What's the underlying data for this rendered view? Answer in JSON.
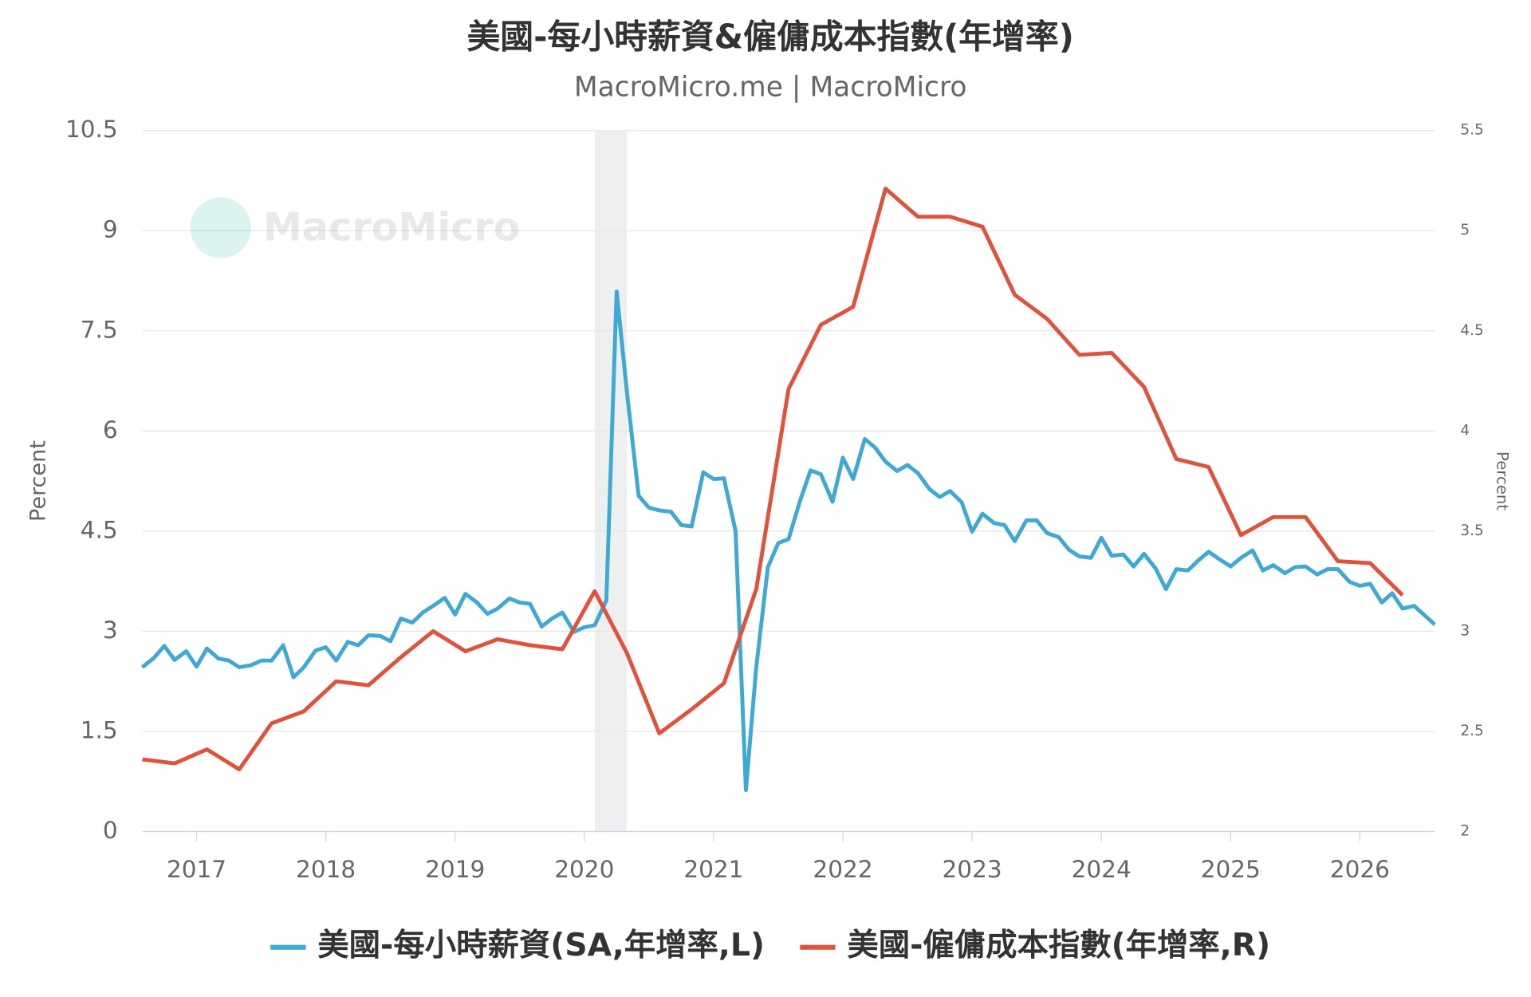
{
  "chart_data": {
    "type": "line",
    "title": "美國-每小時薪資&僱傭成本指數(年增率)",
    "subtitle": "MacroMicro.me | MacroMicro",
    "watermark": "MacroMicro",
    "ylabel": "Percent",
    "y2label": "Percent",
    "xlim": [
      2016.58,
      2026.58
    ],
    "xticks": [
      2017,
      2018,
      2019,
      2020,
      2021,
      2022,
      2023,
      2024,
      2025,
      2026
    ],
    "ylim": [
      0,
      10.5
    ],
    "yticks": [
      0,
      1.5,
      3,
      4.5,
      6,
      7.5,
      9,
      10.5
    ],
    "y2lim": [
      2,
      5.5
    ],
    "y2ticks": [
      2,
      2.5,
      3,
      3.5,
      4,
      4.5,
      5,
      5.5
    ],
    "grid": true,
    "recessions": [
      [
        2020.08,
        2020.33
      ]
    ],
    "series": [
      {
        "name": "美國-每小時薪資(SA,年增率,L)",
        "color": "#3fa9d6",
        "axis": "y",
        "x": [
          2016.58,
          2016.67,
          2016.75,
          2016.83,
          2016.92,
          2017.0,
          2017.08,
          2017.17,
          2017.25,
          2017.33,
          2017.42,
          2017.5,
          2017.58,
          2017.67,
          2017.75,
          2017.83,
          2017.92,
          2018.0,
          2018.08,
          2018.17,
          2018.25,
          2018.33,
          2018.42,
          2018.5,
          2018.58,
          2018.67,
          2018.75,
          2018.83,
          2018.92,
          2019.0,
          2019.08,
          2019.17,
          2019.25,
          2019.33,
          2019.42,
          2019.5,
          2019.58,
          2019.67,
          2019.75,
          2019.83,
          2019.92,
          2020.0,
          2020.08,
          2020.17,
          2020.25,
          2020.33,
          2020.42,
          2020.5,
          2020.58,
          2020.67,
          2020.75,
          2020.83,
          2020.92,
          2021.0,
          2021.08,
          2021.17,
          2021.25,
          2021.33,
          2021.42,
          2021.5,
          2021.58,
          2021.67,
          2021.75,
          2021.83,
          2021.92,
          2022.0,
          2022.08,
          2022.17,
          2022.25,
          2022.33,
          2022.42,
          2022.5,
          2022.58,
          2022.67,
          2022.75,
          2022.83,
          2022.92,
          2023.0,
          2023.08,
          2023.17,
          2023.25,
          2023.33,
          2023.42,
          2023.5,
          2023.58,
          2023.67,
          2023.75,
          2023.83,
          2023.92,
          2024.0,
          2024.08,
          2024.17,
          2024.25,
          2024.33,
          2024.42,
          2024.5,
          2024.58,
          2024.67,
          2024.75,
          2024.83,
          2024.92,
          2025.0,
          2025.08,
          2025.17,
          2025.25,
          2025.33,
          2025.42,
          2025.5,
          2025.58,
          2025.67,
          2025.75,
          2025.83,
          2025.92,
          2026.0,
          2026.08,
          2026.17,
          2026.25,
          2026.33,
          2026.42,
          2026.5,
          2026.58
        ],
        "values": [
          2.46,
          2.6,
          2.78,
          2.57,
          2.7,
          2.47,
          2.74,
          2.59,
          2.56,
          2.46,
          2.49,
          2.56,
          2.56,
          2.79,
          2.31,
          2.46,
          2.71,
          2.76,
          2.56,
          2.84,
          2.79,
          2.94,
          2.93,
          2.85,
          3.19,
          3.13,
          3.28,
          3.38,
          3.5,
          3.25,
          3.56,
          3.43,
          3.26,
          3.34,
          3.49,
          3.43,
          3.41,
          3.07,
          3.19,
          3.28,
          2.99,
          3.06,
          3.09,
          3.46,
          8.09,
          6.57,
          5.03,
          4.85,
          4.81,
          4.79,
          4.59,
          4.57,
          5.38,
          5.28,
          5.29,
          4.5,
          0.62,
          2.46,
          3.96,
          4.32,
          4.38,
          4.96,
          5.41,
          5.35,
          4.94,
          5.6,
          5.28,
          5.88,
          5.75,
          5.54,
          5.4,
          5.49,
          5.37,
          5.13,
          5.01,
          5.1,
          4.93,
          4.49,
          4.76,
          4.62,
          4.59,
          4.35,
          4.66,
          4.66,
          4.47,
          4.41,
          4.22,
          4.12,
          4.1,
          4.4,
          4.13,
          4.15,
          3.97,
          4.16,
          3.94,
          3.63,
          3.93,
          3.91,
          4.06,
          4.19,
          4.07,
          3.97,
          4.1,
          4.21,
          3.91,
          3.99,
          3.87,
          3.96,
          3.97,
          3.85,
          3.93,
          3.93,
          3.74,
          3.68,
          3.71,
          3.43,
          3.57,
          3.34,
          3.38,
          3.24,
          3.1
        ]
      },
      {
        "name": "美國-僱傭成本指數(年增率,R)",
        "color": "#e0533a",
        "axis": "y2",
        "x": [
          2016.58,
          2016.83,
          2017.08,
          2017.33,
          2017.58,
          2017.83,
          2018.08,
          2018.33,
          2018.58,
          2018.83,
          2019.08,
          2019.33,
          2019.58,
          2019.83,
          2020.08,
          2020.33,
          2020.58,
          2020.83,
          2021.08,
          2021.33,
          2021.58,
          2021.83,
          2022.08,
          2022.33,
          2022.58,
          2022.83,
          2023.08,
          2023.33,
          2023.58,
          2023.83,
          2024.08,
          2024.33,
          2024.58,
          2024.83,
          2025.08,
          2025.33,
          2025.58,
          2025.83,
          2026.08,
          2026.33
        ],
        "values": [
          2.36,
          2.34,
          2.41,
          2.31,
          2.54,
          2.6,
          2.75,
          2.73,
          2.87,
          3.0,
          2.9,
          2.96,
          2.93,
          2.91,
          3.2,
          2.89,
          2.49,
          2.61,
          2.74,
          3.21,
          4.21,
          4.53,
          4.62,
          5.21,
          5.07,
          5.07,
          5.02,
          4.68,
          4.56,
          4.38,
          4.39,
          4.22,
          3.86,
          3.82,
          3.48,
          3.57,
          3.57,
          3.35,
          3.34,
          3.18
        ]
      }
    ]
  }
}
